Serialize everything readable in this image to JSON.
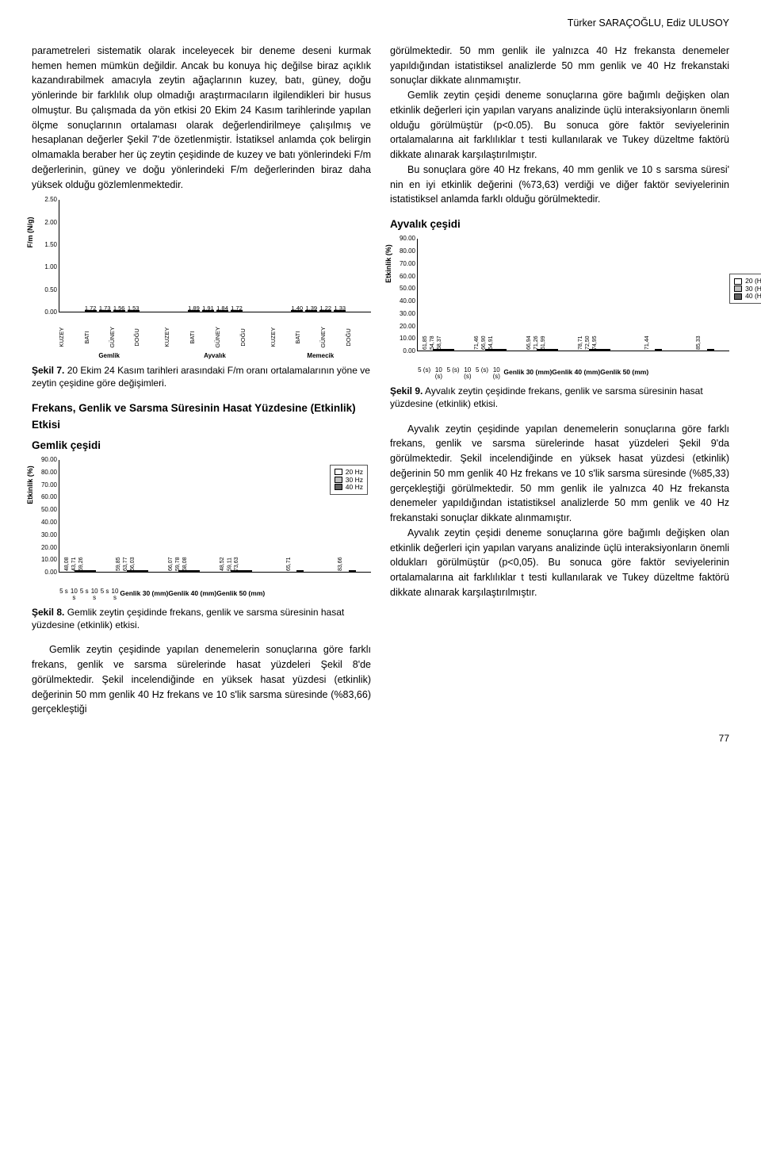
{
  "authors": "Türker SARAÇOĞLU, Ediz ULUSOY",
  "page_number": "77",
  "left": {
    "p1": "parametreleri sistematik olarak inceleyecek bir deneme deseni kurmak hemen hemen mümkün değildir. Ancak bu konuya hiç değilse biraz açıklık kazandırabilmek amacıyla zeytin ağaçlarının kuzey, batı, güney, doğu yönlerinde bir farklılık olup olmadığı araştırmacıların ilgilendikleri bir husus olmuştur. Bu çalışmada da yön etkisi 20 Ekim 24 Kasım tarihlerinde yapılan ölçme sonuçlarının ortalaması olarak değerlendirilmeye çalışılmış ve hesaplanan değerler Şekil 7'de özetlenmiştir. İstatiksel anlamda çok belirgin olmamakla beraber her üç zeytin çeşidinde de kuzey ve batı yönlerindeki F/m değerlerinin, güney ve doğu yönlerindeki F/m değerlerinden biraz daha yüksek olduğu gözlemlenmektedir.",
    "caption7_bold": "Şekil 7.",
    "caption7_rest": " 20 Ekim 24 Kasım tarihleri arasındaki F/m oranı ortalamalarının yöne ve zeytin çeşidine göre değişimleri.",
    "h8": "Frekans, Genlik ve Sarsma Süresinin Hasat Yüzdesine (Etkinlik) Etkisi",
    "h8sub": "Gemlik çeşidi",
    "caption8_bold": "Şekil 8.",
    "caption8_rest": " Gemlik zeytin çeşidinde frekans, genlik ve sarsma süresinin hasat yüzdesine (etkinlik) etkisi.",
    "p8": "Gemlik zeytin çeşidinde yapılan denemelerin sonuçlarına göre farklı frekans, genlik ve sarsma sürelerinde hasat yüzdeleri Şekil 8'de görülmektedir. Şekil incelendiğinde en yüksek hasat yüzdesi (etkinlik) değerinin 50 mm genlik 40 Hz frekans ve 10 s'lik sarsma süresinde (%83,66) gerçekleştiği"
  },
  "right": {
    "p1": "görülmektedir. 50 mm genlik ile yalnızca 40 Hz frekansta denemeler yapıldığından istatistiksel analizlerde 50 mm genlik ve 40 Hz frekanstaki sonuçlar dikkate alınmamıştır.",
    "p2": "Gemlik zeytin çeşidi deneme sonuçlarına göre bağımlı değişken olan etkinlik değerleri için yapılan varyans analizinde üçlü interaksiyonların önemli olduğu görülmüştür (p<0.05). Bu sonuca göre faktör seviyelerinin ortalamalarına ait farklılıklar t testi kullanılarak ve Tukey düzeltme faktörü dikkate alınarak karşılaştırılmıştır.",
    "p3": "Bu sonuçlara göre 40 Hz frekans, 40 mm genlik ve 10 s sarsma süresi' nin en iyi etkinlik değerini (%73,63) verdiği ve diğer faktör seviyelerinin istatistiksel anlamda farklı olduğu görülmektedir.",
    "h9": "Ayvalık çeşidi",
    "caption9_bold": "Şekil 9.",
    "caption9_rest": " Ayvalık zeytin çeşidinde frekans, genlik ve sarsma süresinin hasat yüzdesine (etkinlik) etkisi.",
    "p4": "Ayvalık zeytin çeşidinde yapılan denemelerin sonuçlarına göre farklı frekans, genlik ve sarsma sürelerinde hasat yüzdeleri Şekil 9'da görülmektedir. Şekil incelendiğinde en yüksek hasat yüzdesi (etkinlik) değerinin 50 mm genlik 40 Hz frekans ve 10 s'lik sarsma süresinde (%85,33) gerçekleştiği görülmektedir. 50 mm genlik ile yalnızca 40 Hz frekansta denemeler yapıldığından istatistiksel analizlerde 50 mm genlik ve 40 Hz frekanstaki sonuçlar dikkate alınmamıştır.",
    "p5": "Ayvalık zeytin çeşidi deneme sonuçlarına göre bağımlı değişken olan etkinlik değerleri için yapılan varyans analizinde üçlü interaksiyonların önemli oldukları görülmüştür (p<0,05). Bu sonuca göre faktör seviyelerinin ortalamalarına ait farklılıklar t testi kullanılarak ve Tukey düzeltme faktörü dikkate alınarak karşılaştırılmıştır."
  },
  "chart7": {
    "ylabel": "F/m (N/g)",
    "ymax": 2.5,
    "ystep": 0.5,
    "yticks": [
      "0.00",
      "0.50",
      "1.00",
      "1.50",
      "2.00",
      "2.50"
    ],
    "groups": [
      {
        "label": "Gemlik",
        "bars": [
          {
            "d": "KUZEY",
            "v": 1.72
          },
          {
            "d": "BATI",
            "v": 1.73
          },
          {
            "d": "GÜNEY",
            "v": 1.56
          },
          {
            "d": "DOĞU",
            "v": 1.53
          }
        ]
      },
      {
        "label": "Ayvalık",
        "bars": [
          {
            "d": "KUZEY",
            "v": 1.89
          },
          {
            "d": "BATI",
            "v": 1.91
          },
          {
            "d": "GÜNEY",
            "v": 1.84
          },
          {
            "d": "DOĞU",
            "v": 1.72
          }
        ]
      },
      {
        "label": "Memecik",
        "bars": [
          {
            "d": "KUZEY",
            "v": 1.4
          },
          {
            "d": "BATI",
            "v": 1.39
          },
          {
            "d": "GÜNEY",
            "v": 1.22
          },
          {
            "d": "DOĞU",
            "v": 1.33
          }
        ]
      }
    ],
    "bar_color": "#d0d0d0"
  },
  "chart8": {
    "ylabel": "Etkinlik (%)",
    "ymax": 90,
    "ystep": 10,
    "yticks": [
      "0.00",
      "10.00",
      "20.00",
      "30.00",
      "40.00",
      "50.00",
      "60.00",
      "70.00",
      "80.00",
      "90.00"
    ],
    "legend": [
      "20 Hz",
      "30 Hz",
      "40 Hz"
    ],
    "colors": [
      "#ffffff",
      "#c0c0c0",
      "#606060"
    ],
    "genlik_groups": [
      {
        "label": "Genlik 30 (mm)",
        "subs": [
          {
            "label": "5 s",
            "vals": [
              48.08,
              43.71,
              59.26
            ]
          },
          {
            "label": "10 s",
            "vals": [
              59.85,
              63.77,
              66.03
            ]
          }
        ]
      },
      {
        "label": "Genlik 40 (mm)",
        "subs": [
          {
            "label": "5 s",
            "vals": [
              66.07,
              59.78,
              58.08
            ]
          },
          {
            "label": "10 s",
            "vals": [
              48.52,
              59.11,
              73.63
            ]
          }
        ]
      },
      {
        "label": "Genlik 50 (mm)",
        "subs": [
          {
            "label": "5 s",
            "vals": [
              null,
              null,
              65.71
            ]
          },
          {
            "label": "10 s",
            "vals": [
              null,
              null,
              83.66
            ]
          }
        ]
      }
    ]
  },
  "chart9": {
    "ylabel": "Etkinlik (%)",
    "ymax": 90,
    "ystep": 10,
    "yticks": [
      "0.00",
      "10.00",
      "20.00",
      "30.00",
      "40.00",
      "50.00",
      "60.00",
      "70.00",
      "80.00",
      "90.00"
    ],
    "legend": [
      "20 (Hz)",
      "30 (Hz)",
      "40 (Hz)"
    ],
    "colors": [
      "#ffffff",
      "#c0c0c0",
      "#606060"
    ],
    "genlik_groups": [
      {
        "label": "Genlik 30 (mm)",
        "subs": [
          {
            "label": "5 (s)",
            "vals": [
              61.85,
              54.78,
              58.37
            ]
          },
          {
            "label": "10 (s)",
            "vals": [
              71.46,
              66.9,
              64.91
            ]
          }
        ]
      },
      {
        "label": "Genlik 40 (mm)",
        "subs": [
          {
            "label": "5 (s)",
            "vals": [
              66.94,
              71.26,
              61.99
            ]
          },
          {
            "label": "10 (s)",
            "vals": [
              78.71,
              72.5,
              74.95
            ]
          }
        ]
      },
      {
        "label": "Genlik 50 (mm)",
        "subs": [
          {
            "label": "5 (s)",
            "vals": [
              null,
              null,
              71.44
            ]
          },
          {
            "label": "10 (s)",
            "vals": [
              null,
              null,
              85.33
            ]
          }
        ]
      }
    ]
  }
}
